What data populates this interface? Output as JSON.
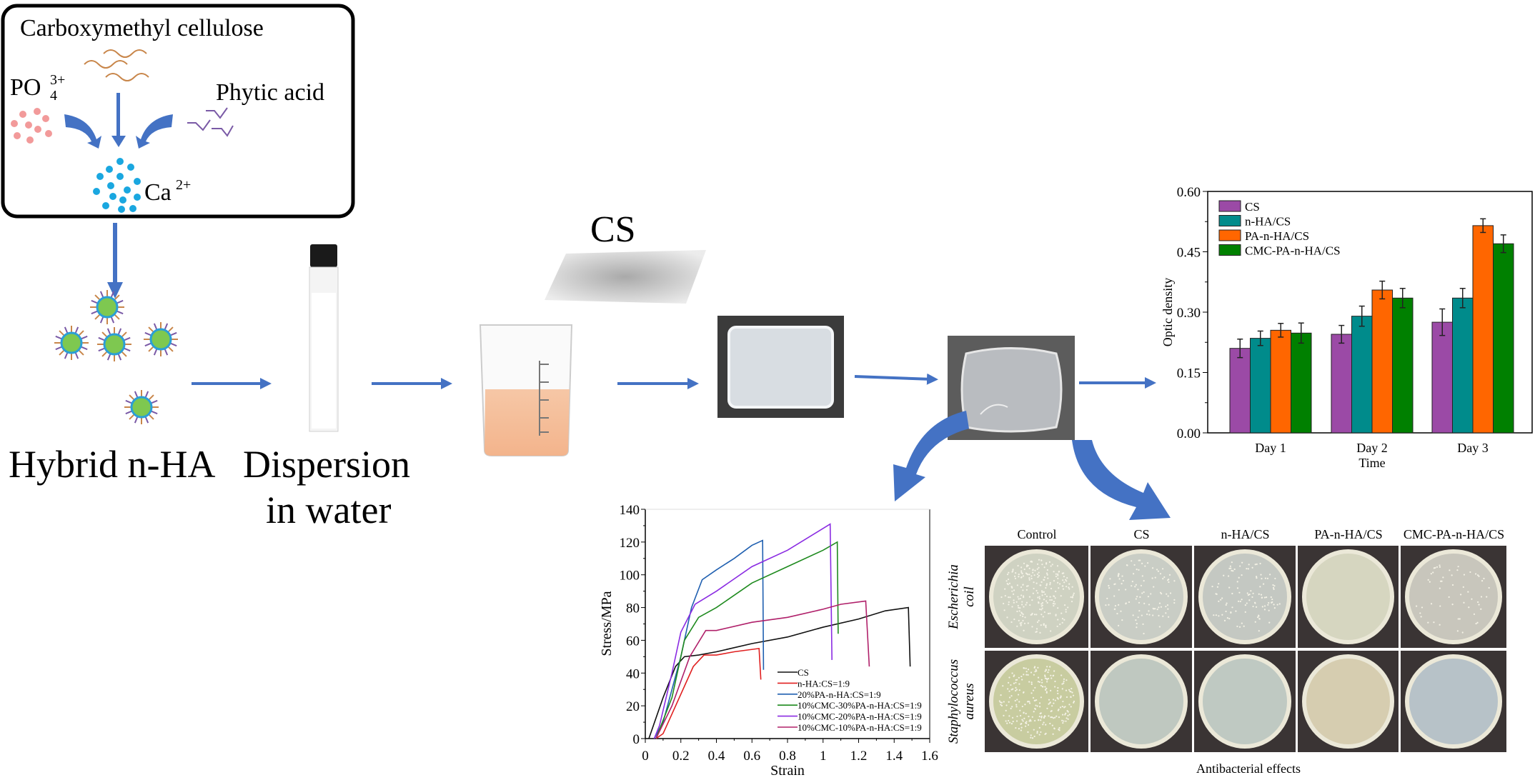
{
  "synthesis_box": {
    "cmc_label": "Carboxymethyl cellulose",
    "phosphate_label": "PO",
    "phosphate_sub": "4",
    "phosphate_sup": "3+",
    "phytic_label": "Phytic acid",
    "calcium_label": "Ca",
    "calcium_sup": "2+"
  },
  "steps": {
    "hybrid_label": "Hybrid n-HA",
    "dispersion_line1": "Dispersion",
    "dispersion_line2": "in water",
    "cs_label": "CS"
  },
  "colors": {
    "arrow": "#4472c4",
    "cmc_chain": "#c8864a",
    "phytic_chain": "#7a5aa6",
    "phosphate_dots": "#f29a9a",
    "calcium_dots": "#1aa7e0"
  },
  "chart_data": [
    {
      "type": "bar",
      "ylabel": "Optic density",
      "xlabel": "Time",
      "categories": [
        "Day 1",
        "Day 2",
        "Day 3"
      ],
      "ylim": [
        0,
        0.6
      ],
      "yticks": [
        "0.00",
        "0.15",
        "0.30",
        "0.45",
        "0.60"
      ],
      "legend_position": "top-left",
      "series": [
        {
          "name": "CS",
          "color": "#9b4aa6",
          "values": [
            0.21,
            0.245,
            0.275
          ],
          "errors": [
            0.023,
            0.022,
            0.033
          ]
        },
        {
          "name": "n-HA/CS",
          "color": "#008b8b",
          "values": [
            0.235,
            0.29,
            0.335
          ],
          "errors": [
            0.018,
            0.025,
            0.024
          ]
        },
        {
          "name": "PA-n-HA/CS",
          "color": "#ff6600",
          "values": [
            0.255,
            0.355,
            0.515
          ],
          "errors": [
            0.017,
            0.022,
            0.017
          ]
        },
        {
          "name": "CMC-PA-n-HA/CS",
          "color": "#008000",
          "values": [
            0.248,
            0.335,
            0.47
          ],
          "errors": [
            0.025,
            0.024,
            0.022
          ]
        }
      ]
    },
    {
      "type": "line",
      "ylabel": "Stress/MPa",
      "xlabel": "Strain",
      "xlim": [
        0,
        1.6
      ],
      "ylim": [
        0,
        140
      ],
      "xticks": [
        "0",
        "0.2",
        "0.4",
        "0.6",
        "0.8",
        "1",
        "1.2",
        "1.4",
        "1.6"
      ],
      "yticks": [
        "0",
        "20",
        "40",
        "60",
        "80",
        "100",
        "120",
        "140"
      ],
      "legend_position": "bottom-right",
      "series": [
        {
          "name": "CS",
          "color": "#111111",
          "points": [
            [
              0.02,
              0
            ],
            [
              0.1,
              25
            ],
            [
              0.17,
              44
            ],
            [
              0.22,
              50
            ],
            [
              0.3,
              51
            ],
            [
              0.4,
              53
            ],
            [
              0.6,
              58
            ],
            [
              0.8,
              62
            ],
            [
              1.0,
              68
            ],
            [
              1.2,
              73
            ],
            [
              1.35,
              78
            ],
            [
              1.48,
              80
            ],
            [
              1.49,
              44
            ]
          ]
        },
        {
          "name": "n-HA:CS=1:9",
          "color": "#e02020",
          "points": [
            [
              0.06,
              0
            ],
            [
              0.1,
              3
            ],
            [
              0.15,
              15
            ],
            [
              0.27,
              44
            ],
            [
              0.33,
              51
            ],
            [
              0.4,
              51
            ],
            [
              0.5,
              53
            ],
            [
              0.64,
              55
            ],
            [
              0.65,
              36
            ]
          ]
        },
        {
          "name": "20%PA-n-HA:CS=1:9",
          "color": "#1f5fb0",
          "points": [
            [
              0.05,
              0
            ],
            [
              0.1,
              10
            ],
            [
              0.2,
              50
            ],
            [
              0.26,
              80
            ],
            [
              0.32,
              97
            ],
            [
              0.4,
              103
            ],
            [
              0.5,
              110
            ],
            [
              0.6,
              118
            ],
            [
              0.66,
              121
            ],
            [
              0.665,
              42
            ]
          ]
        },
        {
          "name": "10%CMC-30%PA-n-HA:CS=1:9",
          "color": "#1e8a1e",
          "points": [
            [
              0.06,
              0
            ],
            [
              0.15,
              25
            ],
            [
              0.22,
              60
            ],
            [
              0.3,
              74
            ],
            [
              0.4,
              80
            ],
            [
              0.6,
              95
            ],
            [
              0.8,
              105
            ],
            [
              1.0,
              115
            ],
            [
              1.08,
              120
            ],
            [
              1.085,
              64
            ]
          ]
        },
        {
          "name": "10%CMC-20%PA-n-HA:CS=1:9",
          "color": "#8a2be2",
          "points": [
            [
              0.05,
              0
            ],
            [
              0.08,
              8
            ],
            [
              0.15,
              40
            ],
            [
              0.2,
              65
            ],
            [
              0.28,
              82
            ],
            [
              0.4,
              90
            ],
            [
              0.6,
              105
            ],
            [
              0.8,
              115
            ],
            [
              1.04,
              131
            ],
            [
              1.05,
              48
            ]
          ]
        },
        {
          "name": "10%CMC-10%PA-n-HA:CS=1:9",
          "color": "#b0206a",
          "points": [
            [
              0.06,
              0
            ],
            [
              0.15,
              20
            ],
            [
              0.25,
              50
            ],
            [
              0.34,
              66
            ],
            [
              0.4,
              66
            ],
            [
              0.6,
              71
            ],
            [
              0.8,
              74
            ],
            [
              1.0,
              79
            ],
            [
              1.1,
              82
            ],
            [
              1.24,
              84
            ],
            [
              1.26,
              44
            ]
          ]
        }
      ]
    }
  ],
  "antibacterial": {
    "columns": [
      "Control",
      "CS",
      "n-HA/CS",
      "PA-n-HA/CS",
      "CMC-PA-n-HA/CS"
    ],
    "rows": [
      {
        "label_line1": "Escherichia",
        "label_line2": "coil",
        "colonies": [
          "dense",
          "moderate",
          "moderate",
          "none",
          "sparse"
        ]
      },
      {
        "label_line1": "Staphylococcus",
        "label_line2": "aureus",
        "colonies": [
          "dense",
          "none",
          "none",
          "none",
          "none"
        ]
      }
    ],
    "caption": "Antibacterial effects"
  }
}
